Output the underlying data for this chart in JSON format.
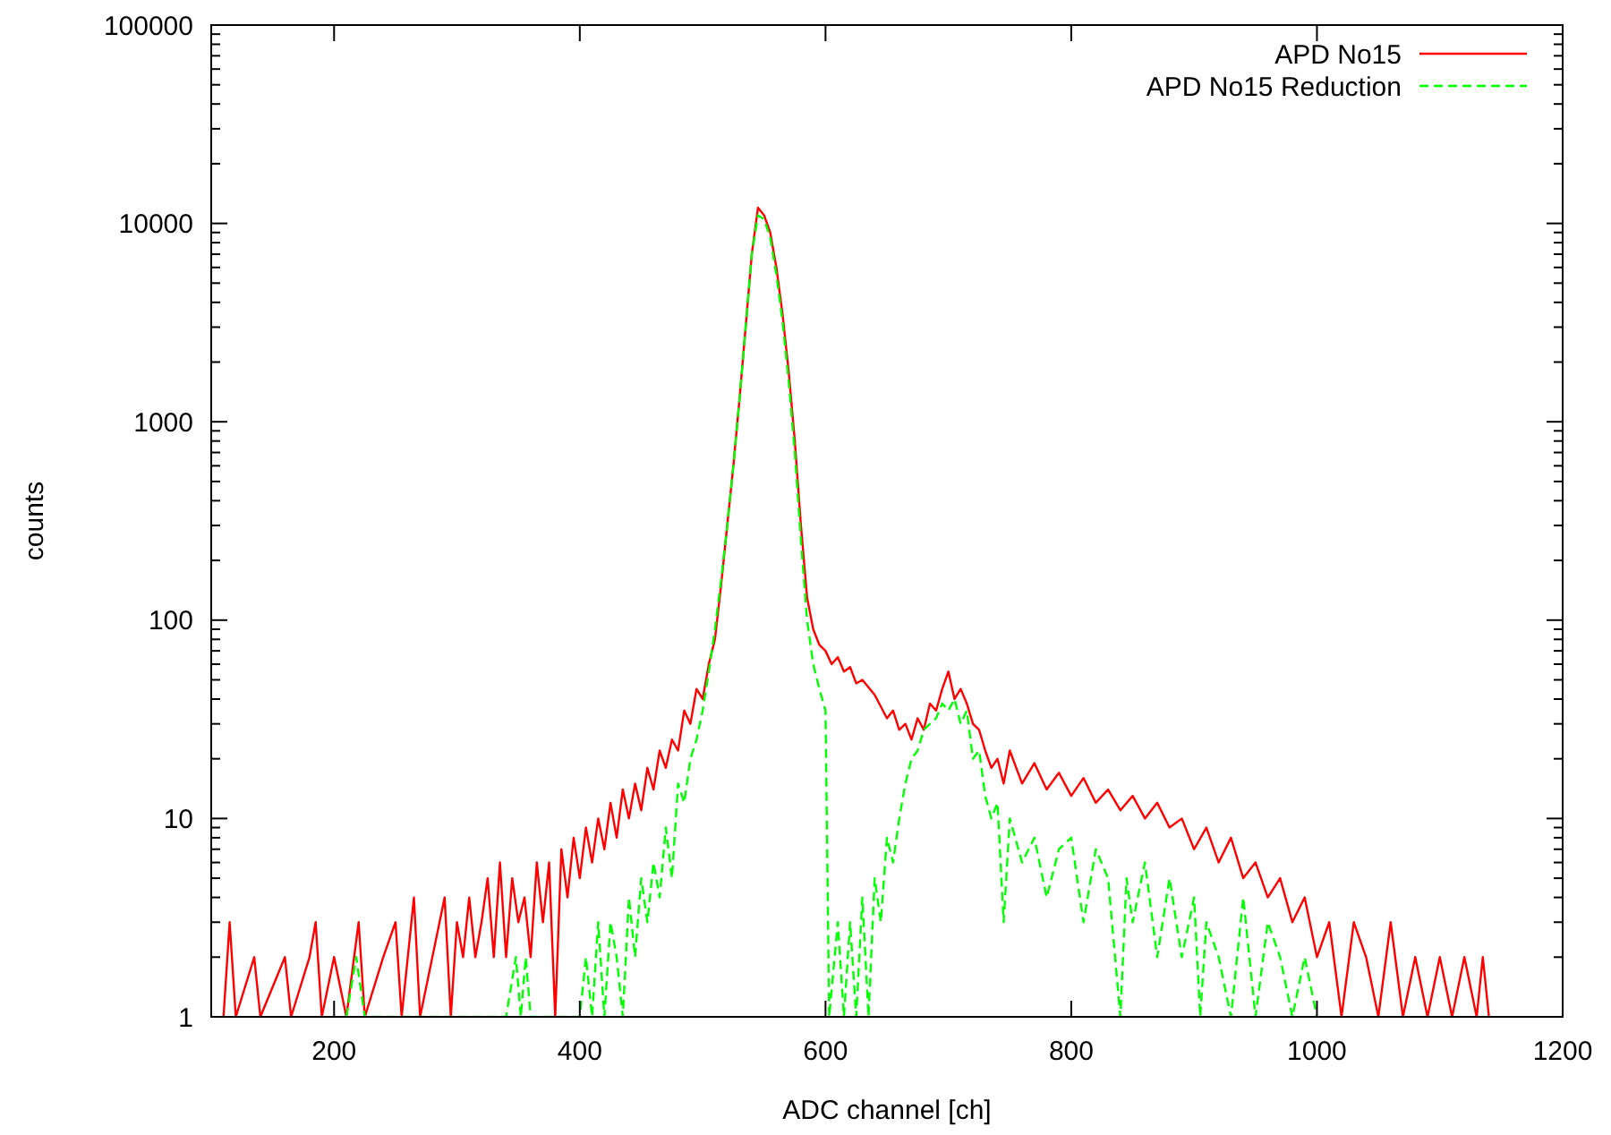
{
  "chart_data": {
    "type": "line",
    "xlabel": "ADC channel [ch]",
    "ylabel": "counts",
    "log": "y",
    "legend": "top right",
    "grid": false,
    "xlim": [
      100,
      1200
    ],
    "xticks": [
      200,
      400,
      600,
      800,
      1000,
      1200
    ],
    "ylim": [
      1,
      100000
    ],
    "yticks": [
      1,
      10,
      100,
      1000,
      10000,
      100000
    ],
    "series": [
      {
        "name": "APD No15",
        "color": "#ff0000",
        "line_style": "solid",
        "x": [
          110,
          115,
          120,
          135,
          140,
          160,
          165,
          180,
          185,
          190,
          200,
          210,
          220,
          225,
          240,
          250,
          255,
          265,
          270,
          280,
          290,
          295,
          300,
          305,
          310,
          315,
          320,
          325,
          330,
          335,
          340,
          345,
          350,
          355,
          360,
          365,
          370,
          375,
          380,
          385,
          390,
          395,
          400,
          405,
          410,
          415,
          420,
          425,
          430,
          435,
          440,
          445,
          450,
          455,
          460,
          465,
          470,
          475,
          480,
          485,
          490,
          495,
          500,
          505,
          510,
          515,
          520,
          525,
          530,
          535,
          540,
          545,
          550,
          555,
          560,
          565,
          570,
          575,
          580,
          585,
          590,
          595,
          600,
          605,
          610,
          615,
          620,
          625,
          630,
          640,
          650,
          655,
          660,
          665,
          670,
          675,
          680,
          685,
          690,
          695,
          700,
          705,
          710,
          715,
          720,
          725,
          730,
          735,
          740,
          745,
          750,
          760,
          770,
          780,
          790,
          800,
          810,
          820,
          830,
          840,
          850,
          860,
          870,
          880,
          890,
          900,
          910,
          920,
          930,
          940,
          950,
          960,
          970,
          980,
          990,
          1000,
          1010,
          1020,
          1030,
          1040,
          1050,
          1060,
          1070,
          1080,
          1090,
          1100,
          1110,
          1120,
          1130,
          1135,
          1140
        ],
        "values": [
          1,
          3,
          1,
          2,
          1,
          2,
          1,
          2,
          3,
          1,
          2,
          1,
          3,
          1,
          2,
          3,
          1,
          4,
          1,
          2,
          4,
          1,
          3,
          2,
          4,
          2,
          3,
          5,
          2,
          6,
          2,
          5,
          3,
          4,
          2,
          6,
          3,
          6,
          1,
          7,
          4,
          8,
          5,
          9,
          6,
          10,
          7,
          12,
          8,
          14,
          10,
          15,
          11,
          18,
          14,
          22,
          18,
          25,
          22,
          35,
          30,
          45,
          40,
          60,
          80,
          150,
          300,
          600,
          1300,
          3000,
          7000,
          12000,
          11000,
          9000,
          6000,
          3500,
          1800,
          800,
          300,
          130,
          90,
          75,
          70,
          60,
          65,
          55,
          58,
          48,
          50,
          42,
          32,
          35,
          28,
          30,
          25,
          32,
          28,
          38,
          35,
          45,
          55,
          40,
          45,
          38,
          30,
          28,
          22,
          18,
          20,
          15,
          22,
          15,
          19,
          14,
          17,
          13,
          16,
          12,
          14,
          11,
          13,
          10,
          12,
          9,
          10,
          7,
          9,
          6,
          8,
          5,
          6,
          4,
          5,
          3,
          4,
          2,
          3,
          1,
          3,
          2,
          1,
          3,
          1,
          2,
          1,
          2,
          1,
          2,
          1,
          2,
          1
        ]
      },
      {
        "name": "APD No15 Reduction",
        "color": "#00ff00",
        "line_style": "dashed",
        "x": [
          210,
          218,
          225,
          340,
          348,
          352,
          356,
          360,
          400,
          405,
          410,
          415,
          420,
          425,
          430,
          435,
          440,
          445,
          450,
          455,
          460,
          465,
          470,
          475,
          480,
          485,
          490,
          495,
          500,
          505,
          510,
          515,
          520,
          525,
          530,
          535,
          540,
          545,
          550,
          555,
          560,
          565,
          570,
          575,
          580,
          585,
          590,
          595,
          600,
          603,
          610,
          615,
          620,
          625,
          630,
          635,
          640,
          645,
          650,
          655,
          660,
          665,
          670,
          675,
          680,
          685,
          690,
          695,
          700,
          705,
          710,
          715,
          720,
          725,
          730,
          735,
          740,
          745,
          750,
          760,
          770,
          780,
          790,
          800,
          810,
          820,
          830,
          840,
          845,
          850,
          860,
          870,
          880,
          890,
          900,
          905,
          910,
          920,
          930,
          940,
          950,
          960,
          970,
          980,
          990,
          1000
        ],
        "values": [
          1,
          2,
          1,
          1,
          2,
          1,
          2,
          1,
          1,
          2,
          1,
          3,
          1,
          3,
          2,
          1,
          4,
          2,
          5,
          3,
          6,
          4,
          9,
          5,
          15,
          12,
          20,
          25,
          35,
          55,
          90,
          160,
          300,
          600,
          1300,
          3000,
          7000,
          11000,
          10500,
          8500,
          5500,
          3200,
          1600,
          700,
          250,
          100,
          60,
          45,
          35,
          1,
          3,
          1,
          3,
          1,
          4,
          1,
          5,
          3,
          8,
          6,
          10,
          15,
          20,
          22,
          28,
          30,
          32,
          38,
          35,
          40,
          30,
          35,
          20,
          22,
          13,
          10,
          12,
          3,
          10,
          6,
          8,
          4,
          7,
          8,
          3,
          7,
          5,
          1,
          5,
          3,
          6,
          2,
          5,
          2,
          4,
          1,
          3,
          2,
          1,
          4,
          1,
          3,
          2,
          1,
          2,
          1
        ]
      }
    ]
  }
}
